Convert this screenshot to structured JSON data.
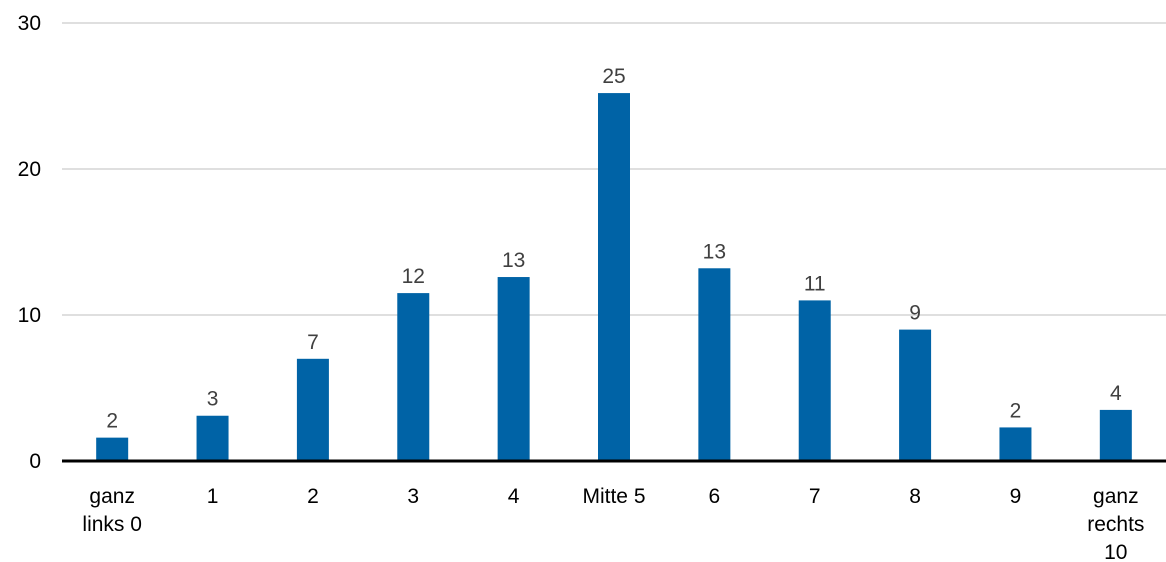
{
  "chart_data": {
    "type": "bar",
    "categories": [
      [
        "ganz",
        "links 0"
      ],
      [
        "1"
      ],
      [
        "2"
      ],
      [
        "3"
      ],
      [
        "4"
      ],
      [
        "Mitte 5"
      ],
      [
        "6"
      ],
      [
        "7"
      ],
      [
        "8"
      ],
      [
        "9"
      ],
      [
        "ganz",
        "rechts",
        "10"
      ]
    ],
    "values": [
      1.6,
      3.1,
      7.0,
      11.5,
      12.6,
      25.2,
      13.2,
      11.0,
      9.0,
      2.3,
      3.5
    ],
    "data_labels": [
      "2",
      "3",
      "7",
      "12",
      "13",
      "25",
      "13",
      "11",
      "9",
      "2",
      "4"
    ],
    "ylim": [
      0,
      30
    ],
    "yticks": [
      0,
      10,
      20,
      30
    ],
    "title": "",
    "xlabel": "",
    "ylabel": "",
    "grid": true,
    "legend": "none",
    "colors": {
      "bar": "#0063A6",
      "grid": "#BFBFBF",
      "axis": "#000000",
      "data_label": "#404040"
    }
  }
}
